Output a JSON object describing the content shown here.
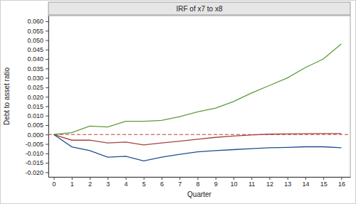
{
  "chart_data": {
    "type": "line",
    "title": "IRF of x7 to x8",
    "x_label": "Quarter",
    "y_label": "Debt to asset ratio",
    "x": [
      0,
      1,
      2,
      3,
      4,
      5,
      6,
      7,
      8,
      9,
      10,
      11,
      12,
      13,
      14,
      15,
      16
    ],
    "series": [
      {
        "color": "#5e9a3c",
        "line_style": "solid",
        "values": [
          0,
          0.001,
          0.0045,
          0.004,
          0.007,
          0.007,
          0.0075,
          0.0095,
          0.012,
          0.014,
          0.0175,
          0.022,
          0.026,
          0.03,
          0.0355,
          0.04,
          0.048
        ]
      },
      {
        "color": "#a4433e",
        "line_style": "solid",
        "values": [
          0,
          -0.003,
          -0.003,
          -0.0045,
          -0.004,
          -0.0055,
          -0.0045,
          -0.0035,
          -0.0025,
          -0.0015,
          -0.0008,
          -0.0002,
          0.0002,
          0.0003,
          0.0004,
          0.0005,
          0.0005
        ]
      },
      {
        "color": "#1f4e8c",
        "line_style": "solid",
        "values": [
          0,
          -0.0065,
          -0.0085,
          -0.012,
          -0.0115,
          -0.014,
          -0.012,
          -0.0105,
          -0.0092,
          -0.0085,
          -0.008,
          -0.0075,
          -0.007,
          -0.0068,
          -0.0065,
          -0.0065,
          -0.007
        ]
      }
    ],
    "reference_line": {
      "value": 0,
      "color": "#c43c3c",
      "line_style": "dashed"
    },
    "xlim": [
      -0.3,
      16.5
    ],
    "ylim": [
      -0.0225,
      0.063
    ],
    "xticks": [
      0,
      1,
      2,
      3,
      4,
      5,
      6,
      7,
      8,
      9,
      10,
      11,
      12,
      13,
      14,
      15,
      16
    ],
    "yticks": [
      {
        "value": -0.02,
        "label": "-0.020"
      },
      {
        "value": -0.015,
        "label": "-0.015"
      },
      {
        "value": -0.01,
        "label": "-0.010"
      },
      {
        "value": -0.005,
        "label": "-0.005"
      },
      {
        "value": 0,
        "label": "0.000"
      },
      {
        "value": 0.005,
        "label": "0.005"
      },
      {
        "value": 0.01,
        "label": "0.010"
      },
      {
        "value": 0.015,
        "label": "0.015"
      },
      {
        "value": 0.02,
        "label": "0.020"
      },
      {
        "value": 0.025,
        "label": "0.025"
      },
      {
        "value": 0.03,
        "label": "0.030"
      },
      {
        "value": 0.035,
        "label": "0.035"
      },
      {
        "value": 0.04,
        "label": "0.040"
      },
      {
        "value": 0.045,
        "label": "0.045"
      },
      {
        "value": 0.05,
        "label": "0.050"
      },
      {
        "value": 0.055,
        "label": "0.055"
      },
      {
        "value": 0.06,
        "label": "0.060"
      }
    ],
    "grid": false
  }
}
